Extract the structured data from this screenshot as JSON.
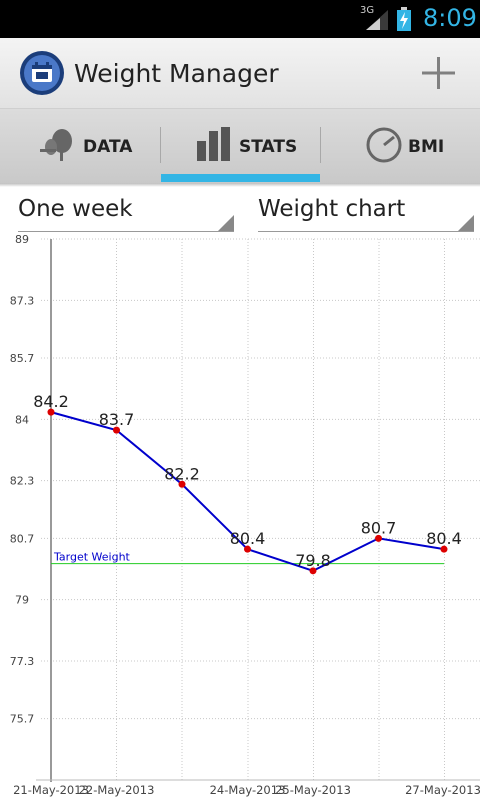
{
  "status_bar": {
    "network": "3G",
    "time": "8:09",
    "icons": [
      "signal-icon",
      "battery-charging-icon"
    ]
  },
  "app": {
    "title": "Weight Manager",
    "icon": "app-calendar-icon",
    "add_icon": "plus-icon"
  },
  "tabs": [
    {
      "label": "DATA",
      "icon": "scale-icon"
    },
    {
      "label": "STATS",
      "icon": "bar-chart-icon",
      "selected": true
    },
    {
      "label": "BMI",
      "icon": "gauge-icon"
    }
  ],
  "filters": {
    "period": "One week",
    "chart_type": "Weight chart"
  },
  "colors": {
    "accent": "#33b5e5",
    "series": "#0000cc",
    "points": "#dd0000",
    "target": "#22cc22",
    "target_label": "#0000cc"
  },
  "chart_data": {
    "type": "line",
    "x": [
      "21-May-2013",
      "22-May-2013",
      "23-May-2013",
      "24-May-2013",
      "25-May-2013",
      "26-May-2013",
      "27-May-2013"
    ],
    "x_tick_labels": [
      "21-May-2013",
      "22-May-2013",
      "24-May-2013",
      "25-May-2013",
      "27-May-2013"
    ],
    "series": [
      {
        "values": [
          84.2,
          83.7,
          82.2,
          80.4,
          79.8,
          80.7,
          80.4
        ]
      }
    ],
    "y_ticks": [
      "89",
      "87.3",
      "85.7",
      "84",
      "82.3",
      "80.7",
      "79",
      "77.3",
      "75.7"
    ],
    "ylim": [
      74.0,
      89.0
    ],
    "target": {
      "label": "Target Weight",
      "value": 80.0
    },
    "grid": true
  }
}
